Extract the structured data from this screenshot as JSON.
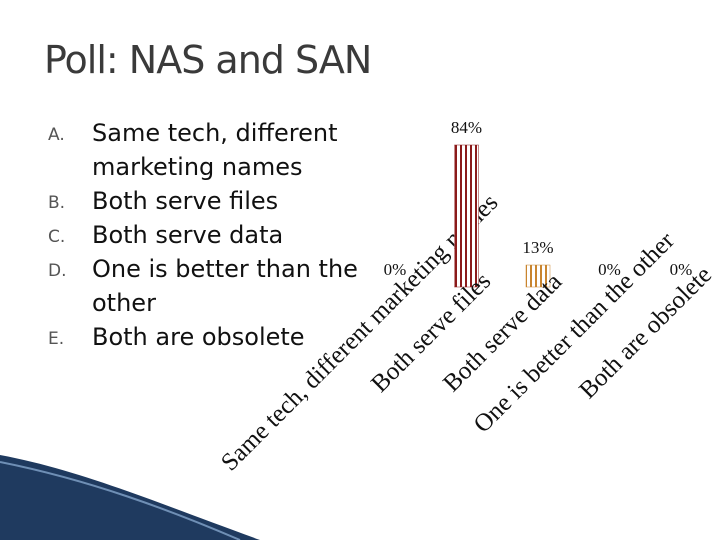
{
  "slide": {
    "title": "Poll: NAS and SAN",
    "options": [
      {
        "letter": "A.",
        "text": "Same tech, different marketing names"
      },
      {
        "letter": "B.",
        "text": "Both serve files"
      },
      {
        "letter": "C.",
        "text": "Both serve data"
      },
      {
        "letter": "D.",
        "text": "One is better than the other"
      },
      {
        "letter": "E.",
        "text": "Both are obsolete"
      }
    ]
  },
  "chart_data": {
    "type": "bar",
    "categories": [
      "Same tech, different marketing names",
      "Both serve files",
      "Both serve data",
      "One is better than the other",
      "Both are obsolete"
    ],
    "values": [
      0,
      84,
      13,
      0,
      0
    ],
    "value_labels": [
      "0%",
      "84%",
      "13%",
      "0%",
      "0%"
    ],
    "colors": [
      "#8b1a1a",
      "#8b1a1a",
      "#c9852f",
      "#8b1a1a",
      "#8b1a1a"
    ]
  }
}
